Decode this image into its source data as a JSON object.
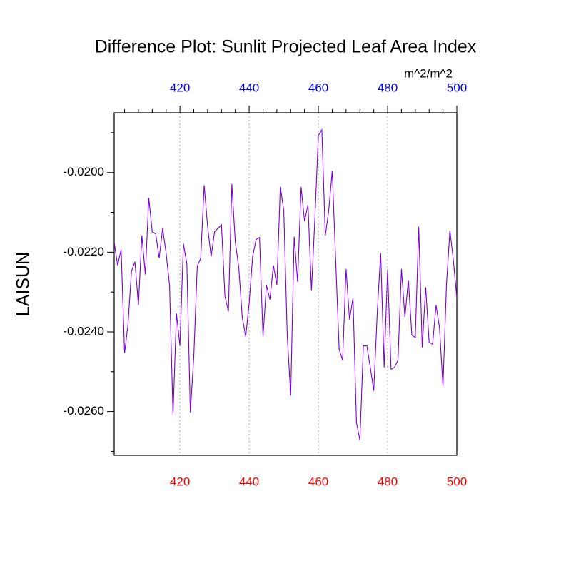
{
  "chart_data": {
    "type": "line",
    "title": "Difference Plot: Sunlit Projected Leaf Area Index",
    "ylabel": "LAISUN",
    "units": "m^2/m^2",
    "x": [
      401,
      402,
      403,
      404,
      405,
      406,
      407,
      408,
      409,
      410,
      411,
      412,
      413,
      414,
      415,
      416,
      417,
      418,
      419,
      420,
      421,
      422,
      423,
      424,
      425,
      426,
      427,
      428,
      429,
      430,
      431,
      432,
      433,
      434,
      435,
      436,
      437,
      438,
      439,
      440,
      441,
      442,
      443,
      444,
      445,
      446,
      447,
      448,
      449,
      450,
      451,
      452,
      453,
      454,
      455,
      456,
      457,
      458,
      459,
      460,
      461,
      462,
      463,
      464,
      465,
      466,
      467,
      468,
      469,
      470,
      471,
      472,
      473,
      474,
      475,
      476,
      477,
      478,
      479,
      480,
      481,
      482,
      483,
      484,
      485,
      486,
      487,
      488,
      489,
      490,
      491,
      492,
      493,
      494,
      495,
      496,
      497,
      498,
      499,
      500
    ],
    "series": [
      {
        "color": "#7a00d6",
        "values": [
          -0.02175,
          -0.02233,
          -0.02193,
          -0.02453,
          -0.02381,
          -0.02247,
          -0.02224,
          -0.02333,
          -0.02158,
          -0.02256,
          -0.02064,
          -0.02149,
          -0.02154,
          -0.02215,
          -0.0214,
          -0.02202,
          -0.02283,
          -0.02609,
          -0.02354,
          -0.02435,
          -0.02179,
          -0.02229,
          -0.02602,
          -0.02462,
          -0.02235,
          -0.02215,
          -0.02032,
          -0.02136,
          -0.02211,
          -0.02149,
          -0.0214,
          -0.02131,
          -0.0231,
          -0.02349,
          -0.02029,
          -0.02175,
          -0.02238,
          -0.02363,
          -0.02412,
          -0.02328,
          -0.02211,
          -0.02168,
          -0.02163,
          -0.02412,
          -0.02283,
          -0.02319,
          -0.02233,
          -0.02283,
          -0.02036,
          -0.02095,
          -0.02408,
          -0.0256,
          -0.02161,
          -0.02274,
          -0.02036,
          -0.02122,
          -0.02081,
          -0.02297,
          -0.02113,
          -0.01907,
          -0.01893,
          -0.02158,
          -0.02095,
          -0.01996,
          -0.0222,
          -0.02444,
          -0.02471,
          -0.02242,
          -0.02369,
          -0.02315,
          -0.02627,
          -0.02672,
          -0.02435,
          -0.02435,
          -0.02489,
          -0.02548,
          -0.02354,
          -0.02202,
          -0.02489,
          -0.02244,
          -0.02494,
          -0.02489,
          -0.02471,
          -0.02242,
          -0.02363,
          -0.0227,
          -0.02408,
          -0.02414,
          -0.02136,
          -0.02439,
          -0.02288,
          -0.02426,
          -0.02431,
          -0.02333,
          -0.0239,
          -0.02537,
          -0.02283,
          -0.02145,
          -0.0222,
          -0.02315
        ]
      }
    ],
    "xlim": [
      401,
      500
    ],
    "ylim": [
      -0.0271,
      -0.0185
    ],
    "xticks": [
      420,
      440,
      460,
      480,
      500
    ],
    "xticks_color": "#ff0000",
    "x2ticks": [
      420,
      440,
      460,
      480,
      500
    ],
    "x2ticks_color": "#0000ff",
    "xminorticks": [
      404,
      408,
      412,
      416,
      424,
      428,
      432,
      436,
      444,
      448,
      452,
      456,
      464,
      468,
      472,
      476,
      484,
      488,
      492,
      496
    ],
    "yticks": [
      {
        "value": -0.02,
        "label": "-0.0200"
      },
      {
        "value": -0.022,
        "label": "-0.0220"
      },
      {
        "value": -0.024,
        "label": "-0.0240"
      },
      {
        "value": -0.026,
        "label": "-0.0260"
      }
    ],
    "yminorticks": [
      -0.019,
      -0.021,
      -0.023,
      -0.025,
      -0.027
    ],
    "grid": true
  }
}
